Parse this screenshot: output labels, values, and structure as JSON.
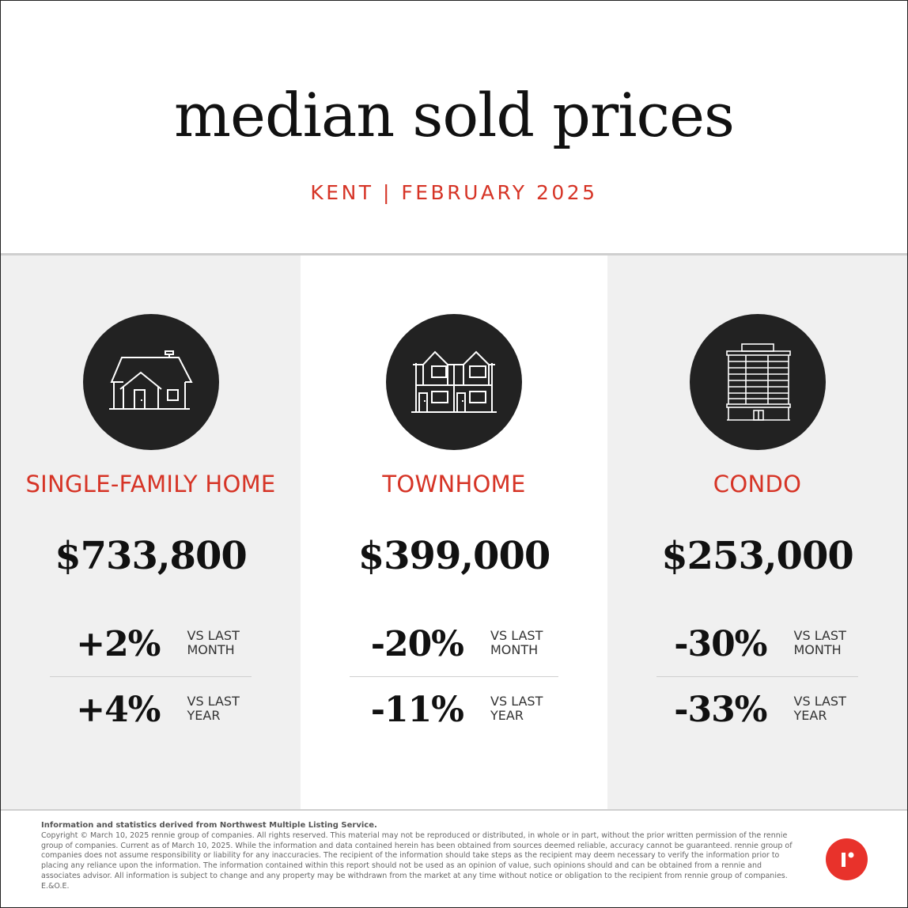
{
  "header": {
    "title": "median sold prices",
    "subtitle": "KENT | FEBRUARY 2025"
  },
  "colors": {
    "accent": "#d63426",
    "circle": "#222222",
    "panel_gray": "#f0f0f0",
    "logo": "#e8322b"
  },
  "panels": [
    {
      "icon": "house-icon",
      "type": "SINGLE-FAMILY HOME",
      "price": "$733,800",
      "month_change": "+2%",
      "month_label": [
        "VS LAST",
        "MONTH"
      ],
      "year_change": "+4%",
      "year_label": [
        "VS LAST",
        "YEAR"
      ]
    },
    {
      "icon": "townhome-icon",
      "type": "TOWNHOME",
      "price": "$399,000",
      "month_change": "-20%",
      "month_label": [
        "VS LAST",
        "MONTH"
      ],
      "year_change": "-11%",
      "year_label": [
        "VS LAST",
        "YEAR"
      ]
    },
    {
      "icon": "condo-icon",
      "type": "CONDO",
      "price": "$253,000",
      "month_change": "-30%",
      "month_label": [
        "VS LAST",
        "MONTH"
      ],
      "year_change": "-33%",
      "year_label": [
        "VS LAST",
        "YEAR"
      ]
    }
  ],
  "footer": {
    "source": "Information and statistics derived from Northwest Multiple Listing Service.",
    "disclaimer": "Copyright © March 10, 2025 rennie group of companies. All rights reserved. This material may not be reproduced or distributed, in whole or in part, without the prior written permission of the rennie group of companies. Current as of March 10, 2025. While the information and data contained herein has been obtained from sources deemed reliable, accuracy cannot be guaranteed. rennie group of companies does not assume responsibility or liability for any inaccuracies. The recipient of the information should take steps as the recipient may deem necessary to verify the information prior to placing any reliance upon the information. The information contained within this report should not be used as an opinion of value, such opinions should and can be obtained from a rennie and associates advisor. All information is subject to change and any property may be withdrawn from the market at any time without notice or obligation to the recipient from rennie group of companies. E.&O.E.",
    "logo_icon": "rennie-logo-icon"
  }
}
